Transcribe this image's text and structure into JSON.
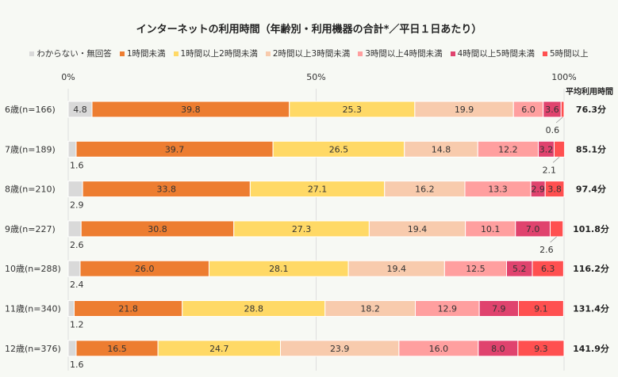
{
  "chart_data": {
    "type": "bar",
    "orientation": "horizontal-stacked-100",
    "title": "インターネットの利用時間（年齢別・利用機器の合計*／平日１日あたり）",
    "xlim": [
      0,
      100
    ],
    "x_ticks": [
      "0%",
      "50%",
      "100%"
    ],
    "legend_position": "top",
    "categories": [
      "6歳(n=166)",
      "7歳(n=189)",
      "8歳(n=210)",
      "9歳(n=227)",
      "10歳(n=288)",
      "11歳(n=340)",
      "12歳(n=376)"
    ],
    "series": [
      {
        "name": "わからない・無回答",
        "color": "#d9d9d9",
        "values": [
          4.8,
          1.6,
          2.9,
          2.6,
          2.4,
          1.2,
          1.6
        ]
      },
      {
        "name": "1時間未満",
        "color": "#ed7d31",
        "values": [
          39.8,
          39.7,
          33.8,
          30.8,
          26.0,
          21.8,
          16.5
        ]
      },
      {
        "name": "1時間以上2時間未満",
        "color": "#ffd966",
        "values": [
          25.3,
          26.5,
          27.1,
          27.3,
          28.1,
          28.8,
          24.7
        ]
      },
      {
        "name": "2時間以上3時間未満",
        "color": "#f8cbad",
        "values": [
          19.9,
          14.8,
          16.2,
          19.4,
          19.4,
          18.2,
          23.9
        ]
      },
      {
        "name": "3時間以上4時間未満",
        "color": "#ff9f9f",
        "values": [
          6.0,
          12.2,
          13.3,
          10.1,
          12.5,
          12.9,
          16.0
        ]
      },
      {
        "name": "4時間以上5時間未満",
        "color": "#e0436e",
        "values": [
          3.6,
          3.2,
          2.9,
          7.0,
          5.2,
          7.9,
          8.0
        ]
      },
      {
        "name": "5時間以上",
        "color": "#ff5050",
        "values": [
          0.6,
          2.1,
          3.8,
          2.6,
          6.3,
          9.1,
          9.3
        ]
      }
    ],
    "average_header": "平均利用時間",
    "averages": [
      "76.3分",
      "85.1分",
      "97.4分",
      "101.8分",
      "116.2分",
      "131.4分",
      "141.9分"
    ],
    "grid": true
  }
}
